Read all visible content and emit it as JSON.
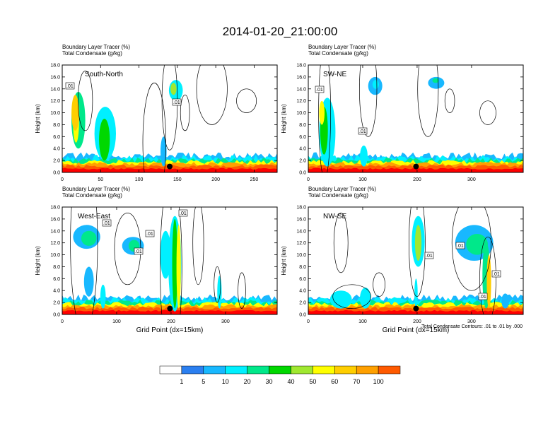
{
  "page": {
    "title": "2014-01-20_21:00:00",
    "field_label_1": "Boundary Layer Tracer   (%)",
    "field_label_2": "Total Condensate   (g/kg)",
    "contour_note": "Total Condensate Contours: .01 to .01 by .000"
  },
  "colorbar": {
    "levels": [
      "1",
      "5",
      "10",
      "20",
      "30",
      "40",
      "50",
      "60",
      "70",
      "100"
    ],
    "colors": [
      "#ffffff",
      "#2b7ff0",
      "#18b8ff",
      "#00f0ff",
      "#00e88a",
      "#00d800",
      "#a0e830",
      "#ffff00",
      "#ffce00",
      "#ffa000",
      "#ff5a00",
      "#ff0000"
    ]
  },
  "chart_data": [
    {
      "type": "heatmap",
      "panel": "South-North",
      "ylabel": "Height (km)",
      "xlabel": "",
      "xlim": [
        0,
        280
      ],
      "ylim": [
        0,
        18
      ],
      "xticks": [
        "0",
        "50",
        "100",
        "150",
        "200",
        "250"
      ],
      "yticks": [
        "0.0",
        "2.0",
        "4.0",
        "6.0",
        "8.0",
        "10.0",
        "12.0",
        "14.0",
        "16.0",
        "18.0"
      ],
      "contour_labels": [
        ".01",
        ".01"
      ],
      "marker_x": 140
    },
    {
      "type": "heatmap",
      "panel": "SW-NE",
      "ylabel": "Height (km)",
      "xlabel": "",
      "xlim": [
        0,
        395
      ],
      "ylim": [
        0,
        18
      ],
      "xticks": [
        "0",
        "100",
        "200",
        "300"
      ],
      "yticks": [
        "0.0",
        "2.0",
        "4.0",
        "6.0",
        "8.0",
        "10.0",
        "12.0",
        "14.0",
        "16.0",
        "18.0"
      ],
      "contour_labels": [
        ".01",
        ".01"
      ],
      "marker_x": 198
    },
    {
      "type": "heatmap",
      "panel": "West-East",
      "ylabel": "Height (km)",
      "xlabel": "Grid Point (dx=15km)",
      "xlim": [
        0,
        395
      ],
      "ylim": [
        0,
        18
      ],
      "xticks": [
        "0",
        "100",
        "200",
        "300"
      ],
      "yticks": [
        "0.0",
        "2.0",
        "4.0",
        "6.0",
        "8.0",
        "10.0",
        "12.0",
        "14.0",
        "16.0",
        "18.0"
      ],
      "contour_labels": [
        ".01",
        ".01",
        ".01",
        ".01"
      ],
      "marker_x": 198
    },
    {
      "type": "heatmap",
      "panel": "NW-SE",
      "ylabel": "Height (km)",
      "xlabel": "Grid Point (dx=15km)",
      "xlim": [
        0,
        395
      ],
      "ylim": [
        0,
        18
      ],
      "xticks": [
        "0",
        "100",
        "200",
        "300"
      ],
      "yticks": [
        "0.0",
        "2.0",
        "4.0",
        "6.0",
        "8.0",
        "10.0",
        "12.0",
        "14.0",
        "16.0",
        "18.0"
      ],
      "contour_labels": [
        ".01",
        ".01",
        ".01",
        ".01"
      ],
      "marker_x": 198
    }
  ]
}
